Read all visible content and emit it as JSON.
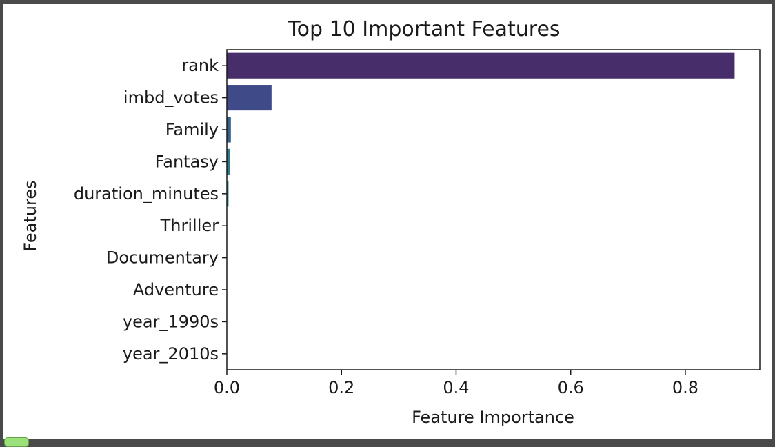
{
  "chart_data": {
    "type": "bar",
    "orientation": "horizontal",
    "title": "Top 10 Important Features",
    "xlabel": "Feature Importance",
    "ylabel": "Features",
    "categories": [
      "rank",
      "imbd_votes",
      "Family",
      "Fantasy",
      "duration_minutes",
      "Thriller",
      "Documentary",
      "Adventure",
      "year_1990s",
      "year_2010s"
    ],
    "values": [
      0.886,
      0.078,
      0.007,
      0.005,
      0.003,
      0.0006,
      0.0005,
      0.0004,
      0.0003,
      0.0002
    ],
    "xlim": [
      0.0,
      0.93
    ],
    "xticks": [
      0.0,
      0.2,
      0.4,
      0.6,
      0.8
    ],
    "xtick_labels": [
      "0.0",
      "0.2",
      "0.4",
      "0.6",
      "0.8"
    ],
    "colors": [
      "#472d6a",
      "#3f4a88",
      "#35618d",
      "#2e7a8c",
      "#29918a",
      "#2ba983",
      "#3fbd73",
      "#6ccf5a",
      "#a4dc3b",
      "#dce62b"
    ],
    "grid": false,
    "legend": "none"
  }
}
